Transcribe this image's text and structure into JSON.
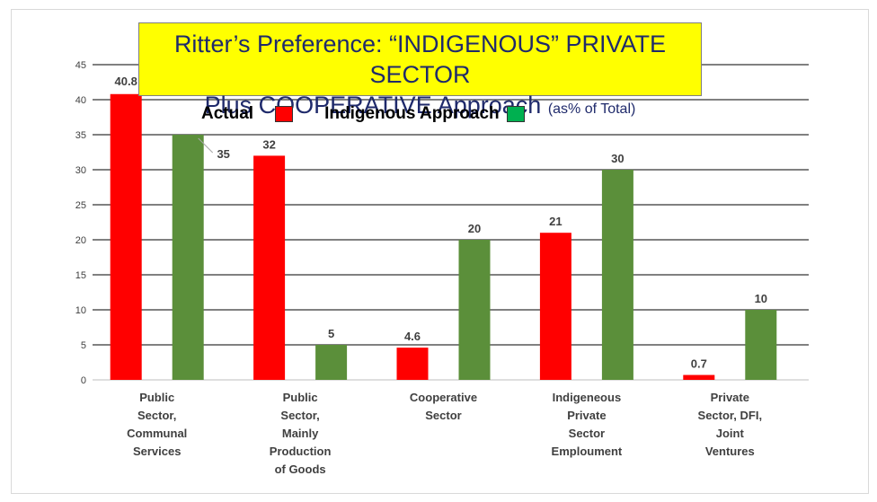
{
  "title": {
    "line1": "Ritter’s Preference: “INDIGENOUS” PRIVATE SECTOR",
    "line2": "Plus COOPERATIVE Approach",
    "note": "(as% of Total)"
  },
  "legend": {
    "actual": "Actual",
    "indigenous": "Indigenous Approach"
  },
  "colors": {
    "actual_bar": "#ff0000",
    "indigenous_bar": "#5b8f3a",
    "indigenous_legend_swatch": "#00b050",
    "title_background": "#ffff00",
    "title_text": "#1f2a6b"
  },
  "chart_data": {
    "type": "bar",
    "categories": [
      [
        "Public",
        "Sector,",
        "Communal",
        "Services"
      ],
      [
        "Public",
        "Sector,",
        "Mainly",
        "Production",
        "of Goods"
      ],
      [
        "Cooperative",
        "Sector"
      ],
      [
        "Indigeneous",
        "Private",
        "Sector",
        "Emploument"
      ],
      [
        "Private",
        "Sector, DFI,",
        "Joint",
        "Ventures"
      ]
    ],
    "series": [
      {
        "name": "Actual",
        "values": [
          40.8,
          32,
          4.6,
          21,
          0.7
        ],
        "labels": [
          "40.8",
          "32",
          "4.6",
          "21",
          "0.7"
        ]
      },
      {
        "name": "Indigenous Approach",
        "values": [
          35,
          5,
          20,
          30,
          10
        ],
        "labels": [
          "35",
          "5",
          "20",
          "30",
          "10"
        ]
      }
    ],
    "ylim": [
      0,
      45
    ],
    "yticks": [
      0,
      5,
      10,
      15,
      20,
      25,
      30,
      35,
      40,
      45
    ],
    "grid": true,
    "legend_position": "top-left"
  }
}
